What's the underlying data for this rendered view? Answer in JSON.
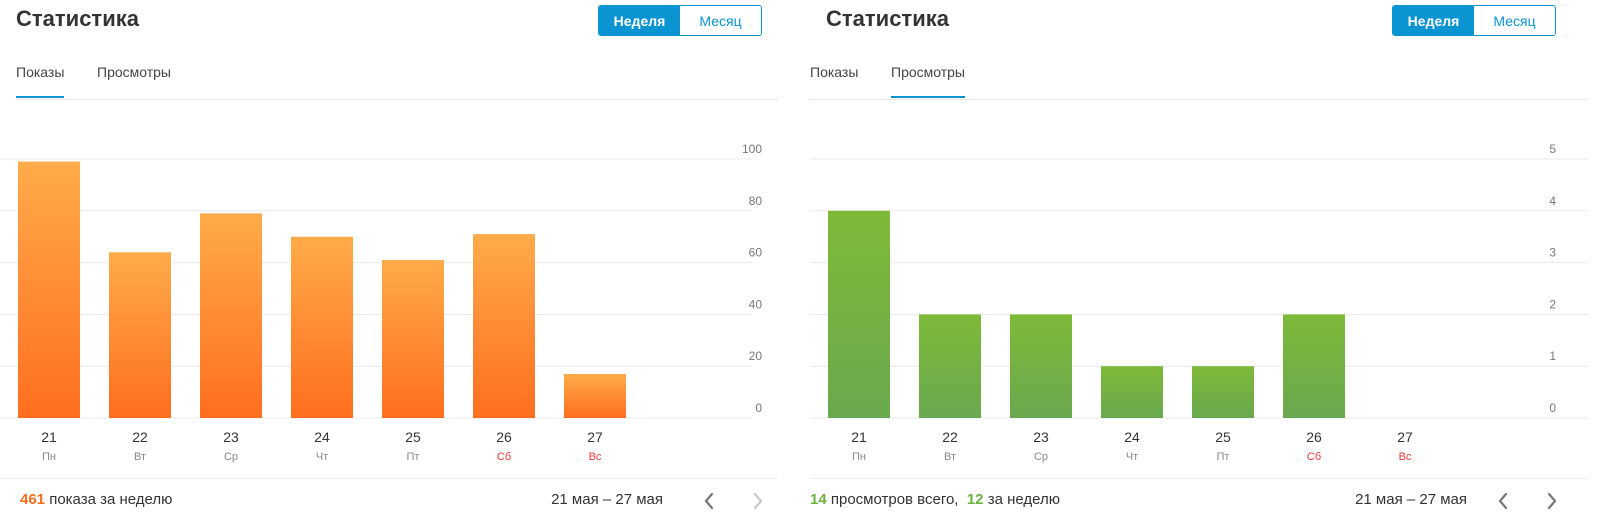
{
  "colors": {
    "accent": "#0a95d2",
    "orange_top": "#ffab4a",
    "orange_bottom": "#ff6e1f",
    "green_top": "#7dba38",
    "green_bottom": "#6aa84f",
    "weekend": "#e53935",
    "grid": "#e9e9e9"
  },
  "panels": [
    {
      "title": "Статистика",
      "toggle": {
        "week": "Неделя",
        "month": "Месяц",
        "active": "week"
      },
      "tabs": [
        {
          "label": "Показы",
          "active": true
        },
        {
          "label": "Просмотры",
          "active": false
        }
      ],
      "summary": {
        "total": "461",
        "text": "показа за неделю"
      },
      "range": "21 мая – 27 мая",
      "icons": {
        "prev": "chevron-left-icon",
        "next": "chevron-right-icon"
      }
    },
    {
      "title": "Статистика",
      "toggle": {
        "week": "Неделя",
        "month": "Месяц",
        "active": "week"
      },
      "tabs": [
        {
          "label": "Показы",
          "active": false
        },
        {
          "label": "Просмотры",
          "active": true
        }
      ],
      "summary": {
        "total": "14",
        "total_text": "просмотров всего,",
        "week": "12",
        "week_text": "за неделю"
      },
      "range": "21 мая – 27 мая",
      "icons": {
        "prev": "chevron-left-icon",
        "next": "chevron-right-icon"
      }
    }
  ],
  "chart_data": [
    {
      "type": "bar",
      "color": "orange",
      "categories": [
        "21",
        "22",
        "23",
        "24",
        "25",
        "26",
        "27"
      ],
      "weekdays": [
        "Пн",
        "Вт",
        "Ср",
        "Чт",
        "Пт",
        "Сб",
        "Вс"
      ],
      "weekend": [
        false,
        false,
        false,
        false,
        false,
        true,
        true
      ],
      "values": [
        99,
        64,
        79,
        70,
        61,
        71,
        17
      ],
      "yticks": [
        "0",
        "20",
        "40",
        "60",
        "80",
        "100"
      ],
      "ylim": [
        0,
        100
      ],
      "grid": true
    },
    {
      "type": "bar",
      "color": "green",
      "categories": [
        "21",
        "22",
        "23",
        "24",
        "25",
        "26",
        "27"
      ],
      "weekdays": [
        "Пн",
        "Вт",
        "Ср",
        "Чт",
        "Пт",
        "Сб",
        "Вс"
      ],
      "weekend": [
        false,
        false,
        false,
        false,
        false,
        true,
        true
      ],
      "values": [
        4,
        2,
        2,
        1,
        1,
        2,
        0
      ],
      "yticks": [
        "0",
        "1",
        "2",
        "3",
        "4",
        "5"
      ],
      "ylim": [
        0,
        5
      ],
      "grid": true
    }
  ]
}
